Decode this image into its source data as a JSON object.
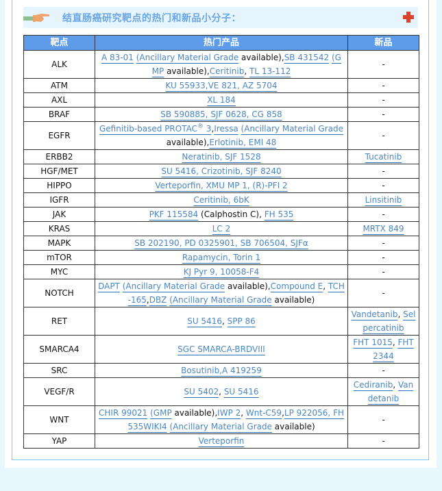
{
  "header": {
    "title": "结直肠癌研究靶点的热门和新品小分子：",
    "icon": "pointing-hand-icon",
    "expand_icon": "plus-icon",
    "accent": "#6aa6e3"
  },
  "table": {
    "columns": [
      "靶点",
      "热门产品",
      "新品"
    ],
    "header_color": "#5e9ce9",
    "rows": [
      {
        "target": "ALK",
        "hot": [
          {
            "t": "A 83-01",
            "l": 1
          },
          {
            "t": " ",
            "l": 0
          },
          {
            "t": "(Ancillary Material Grade",
            "l": 1
          },
          {
            "t": " available),",
            "l": 0
          },
          {
            "t": "SB 431542",
            "l": 1
          },
          {
            "t": " ",
            "l": 0
          },
          {
            "t": "(GMP",
            "l": 1
          },
          {
            "t": " available),",
            "l": 0
          },
          {
            "t": "Ceritinib",
            "l": 1
          },
          {
            "t": ", ",
            "l": 0
          },
          {
            "t": "TL 13-112",
            "l": 1
          }
        ],
        "new": [
          {
            "t": "-",
            "l": 0
          }
        ]
      },
      {
        "target": "ATM",
        "hot": [
          {
            "t": "KU 55933,VE 821, AZ 5704",
            "l": 1
          }
        ],
        "new": [
          {
            "t": "-",
            "l": 0
          }
        ]
      },
      {
        "target": "AXL",
        "hot": [
          {
            "t": "XL 184",
            "l": 1
          }
        ],
        "new": [
          {
            "t": "-",
            "l": 0
          }
        ]
      },
      {
        "target": "BRAF",
        "hot": [
          {
            "t": "SB 590885, SJF 0628, CG 858",
            "l": 1
          }
        ],
        "new": [
          {
            "t": "-",
            "l": 0
          }
        ]
      },
      {
        "target": "EGFR",
        "hot": [
          {
            "t": "Gefinitib-based PROTAC® 3",
            "l": 1
          },
          {
            "t": ",",
            "l": 0
          },
          {
            "t": "Iressa",
            "l": 1
          },
          {
            "t": " ",
            "l": 0
          },
          {
            "t": "(Ancillary Material Grade",
            "l": 1
          },
          {
            "t": " available),",
            "l": 0
          },
          {
            "t": "Erlotinib, EMI 48",
            "l": 1
          }
        ],
        "new": [
          {
            "t": "-",
            "l": 0
          }
        ]
      },
      {
        "target": "ERBB2",
        "hot": [
          {
            "t": "Neratinib, SJF 1528",
            "l": 1
          }
        ],
        "new": [
          {
            "t": "Tucatinib",
            "l": 1
          }
        ]
      },
      {
        "target": "HGF/MET",
        "hot": [
          {
            "t": "SU 5416, Crizotinib, SJF 8240",
            "l": 1
          }
        ],
        "new": [
          {
            "t": "-",
            "l": 0
          }
        ]
      },
      {
        "target": "HIPPO",
        "hot": [
          {
            "t": "Verteporfin, XMU MP 1, (R)-PFI 2",
            "l": 1
          }
        ],
        "new": [
          {
            "t": "-",
            "l": 0
          }
        ]
      },
      {
        "target": "IGFR",
        "hot": [
          {
            "t": "Ceritinib, 6bK",
            "l": 1
          }
        ],
        "new": [
          {
            "t": "Linsitinib",
            "l": 1
          }
        ]
      },
      {
        "target": "JAK",
        "hot": [
          {
            "t": "PKF 115584",
            "l": 1
          },
          {
            "t": " (Calphostin C), ",
            "l": 0
          },
          {
            "t": "FH 535",
            "l": 1
          }
        ],
        "new": [
          {
            "t": "-",
            "l": 0
          }
        ]
      },
      {
        "target": "KRAS",
        "hot": [
          {
            "t": "LC 2",
            "l": 1
          }
        ],
        "new": [
          {
            "t": "MRTX 849",
            "l": 1
          }
        ]
      },
      {
        "target": "MAPK",
        "hot": [
          {
            "t": "SB 202190, PD 0325901, SB 706504, SJFα",
            "l": 1
          }
        ],
        "new": [
          {
            "t": "-",
            "l": 0
          }
        ]
      },
      {
        "target": "mTOR",
        "hot": [
          {
            "t": "Rapamycin, Torin 1",
            "l": 1
          }
        ],
        "new": [
          {
            "t": "-",
            "l": 0
          }
        ]
      },
      {
        "target": "MYC",
        "hot": [
          {
            "t": "KJ Pyr 9, 10058-F4",
            "l": 1
          }
        ],
        "new": [
          {
            "t": "-",
            "l": 0
          }
        ]
      },
      {
        "target": "NOTCH",
        "hot": [
          {
            "t": "DAPT",
            "l": 1
          },
          {
            "t": " ",
            "l": 0
          },
          {
            "t": "(Ancillary Material Grade",
            "l": 1
          },
          {
            "t": " available),",
            "l": 0
          },
          {
            "t": "Compound E",
            "l": 1
          },
          {
            "t": ", ",
            "l": 0
          },
          {
            "t": "TCH-165",
            "l": 1
          },
          {
            "t": ",",
            "l": 0
          },
          {
            "t": "DBZ",
            "l": 1
          },
          {
            "t": " ",
            "l": 0
          },
          {
            "t": "(Ancillary Material Grade",
            "l": 1
          },
          {
            "t": " available)",
            "l": 0
          }
        ],
        "new": [
          {
            "t": "-",
            "l": 0
          }
        ]
      },
      {
        "target": "RET",
        "hot": [
          {
            "t": "SU 5416",
            "l": 1
          },
          {
            "t": ", ",
            "l": 0
          },
          {
            "t": "SPP 86",
            "l": 1
          }
        ],
        "new": [
          {
            "t": "Vandetanib",
            "l": 1
          },
          {
            "t": ", ",
            "l": 0
          },
          {
            "t": "Selpercatinib",
            "l": 1
          }
        ]
      },
      {
        "target": "SMARCA4",
        "hot": [
          {
            "t": "SGC SMARCA-BRDVIII",
            "l": 1
          }
        ],
        "new": [
          {
            "t": "FHT 1015",
            "l": 1
          },
          {
            "t": ", ",
            "l": 0
          },
          {
            "t": "FHT 2344",
            "l": 1
          }
        ]
      },
      {
        "target": "SRC",
        "hot": [
          {
            "t": "Bosutinib,A 419259",
            "l": 1
          }
        ],
        "new": [
          {
            "t": "-",
            "l": 0
          }
        ]
      },
      {
        "target": "VEGF/R",
        "hot": [
          {
            "t": "SU 5402",
            "l": 1
          },
          {
            "t": ", ",
            "l": 0
          },
          {
            "t": "SU 5416",
            "l": 1
          }
        ],
        "new": [
          {
            "t": "Cediranib",
            "l": 1
          },
          {
            "t": ", ",
            "l": 0
          },
          {
            "t": "Vandetanib",
            "l": 1
          }
        ]
      },
      {
        "target": "WNT",
        "hot": [
          {
            "t": "CHIR 99021",
            "l": 1
          },
          {
            "t": " ",
            "l": 0
          },
          {
            "t": "(GMP",
            "l": 1
          },
          {
            "t": " available),",
            "l": 0
          },
          {
            "t": "IWP 2",
            "l": 1
          },
          {
            "t": ", ",
            "l": 0
          },
          {
            "t": "Wnt-C59",
            "l": 1
          },
          {
            "t": ",",
            "l": 0
          },
          {
            "t": "LP 922056, FH 535WIKI4",
            "l": 1
          },
          {
            "t": " ",
            "l": 0
          },
          {
            "t": "(Ancillary Material Grade",
            "l": 1
          },
          {
            "t": " available)",
            "l": 0
          }
        ],
        "new": [
          {
            "t": "-",
            "l": 0
          }
        ]
      },
      {
        "target": "YAP",
        "hot": [
          {
            "t": "Verteporfin",
            "l": 1
          }
        ],
        "new": [
          {
            "t": "-",
            "l": 0
          }
        ]
      }
    ]
  }
}
